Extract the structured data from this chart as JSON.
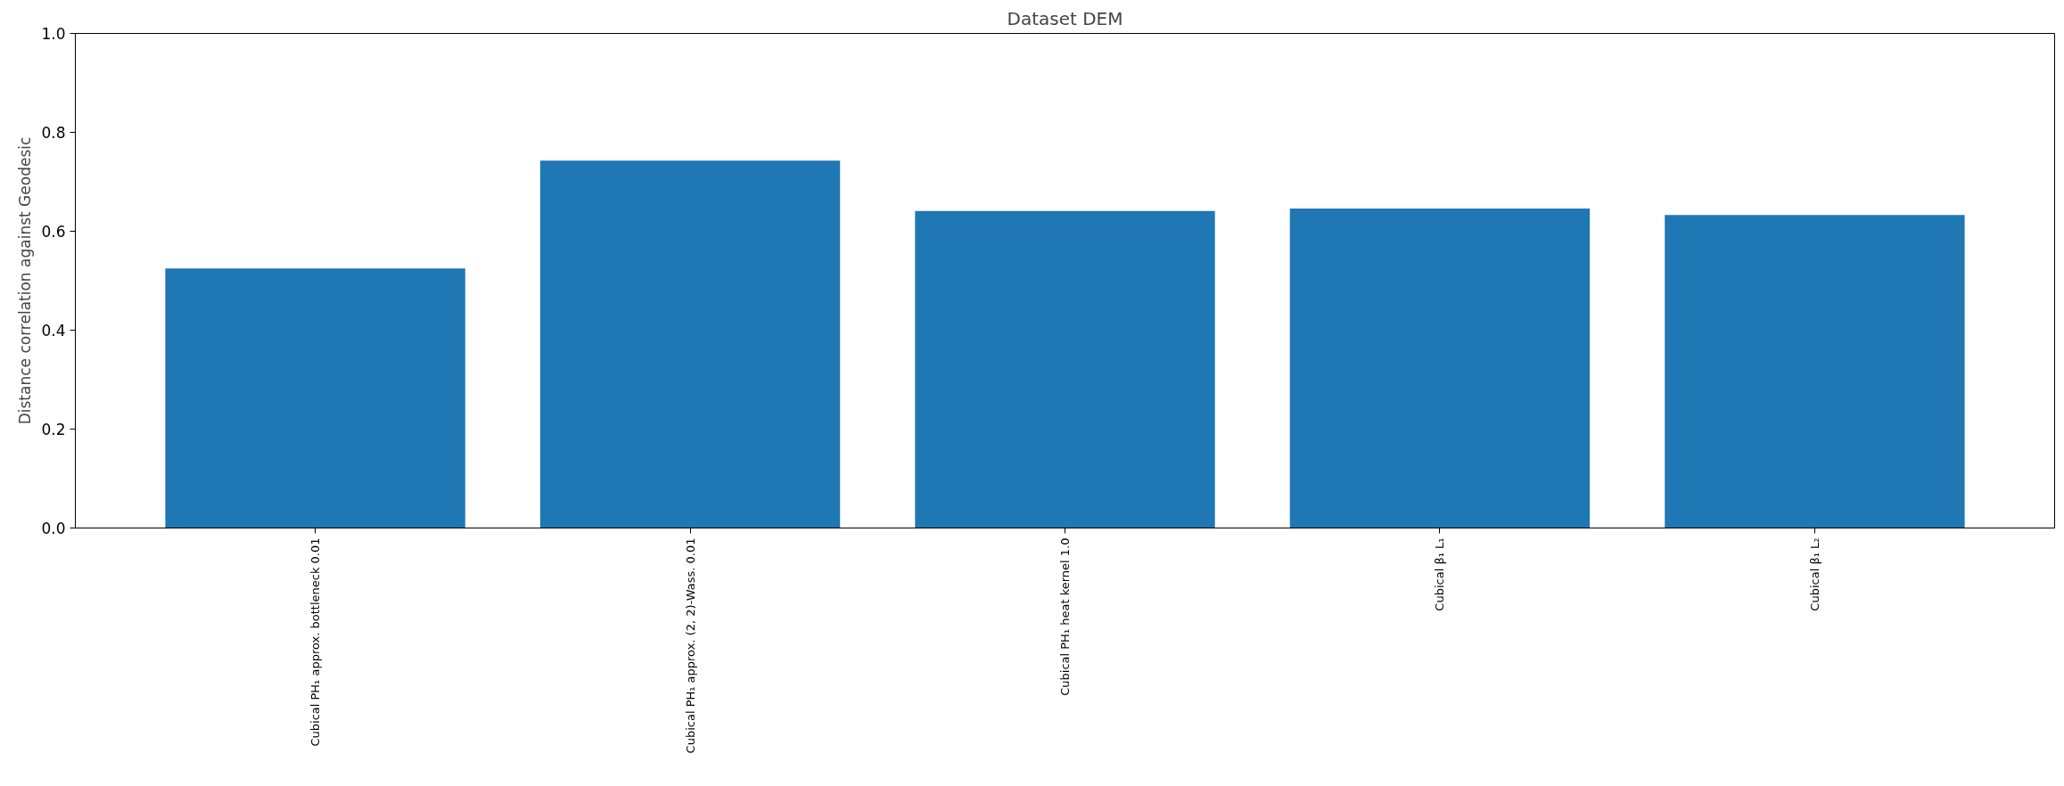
{
  "chart_data": {
    "type": "bar",
    "title": "Dataset DEM",
    "ylabel": "Distance correlation against Geodesic",
    "categories": [
      "Cubical PH₁ approx. bottleneck 0.01",
      "Cubical PH₁ approx. (2, 2)-Wass. 0.01",
      "Cubical PH₁ heat kernel 1.0",
      "Cubical β₁ L₁",
      "Cubical β₁ L₂"
    ],
    "values": [
      0.525,
      0.743,
      0.641,
      0.646,
      0.633
    ],
    "color": "#1f77b4",
    "ylim": [
      0,
      1
    ],
    "yticks": [
      {
        "value": 0,
        "label": "0.0"
      },
      0.2,
      0.4,
      0.6,
      0.8,
      {
        "value": 1,
        "label": "1.0"
      }
    ],
    "grid": false
  }
}
